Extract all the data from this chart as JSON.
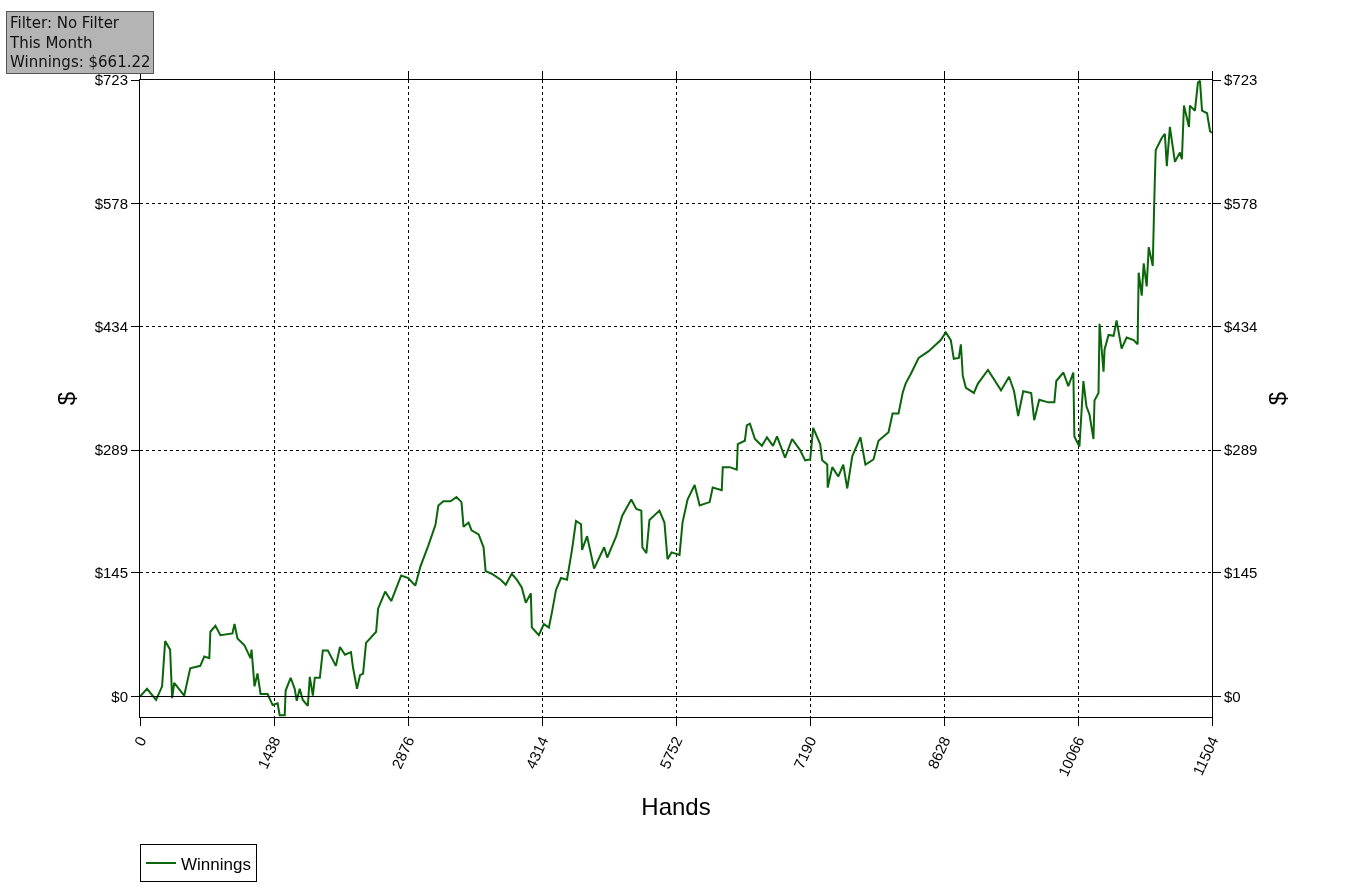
{
  "chart_data": {
    "type": "line",
    "xlabel": "Hands",
    "ylabel": "$",
    "y2label": "$",
    "annotations": [
      "Filter: No Filter",
      "This Month",
      "Winnings: $661.22"
    ],
    "xlim": [
      0,
      11504
    ],
    "xticks": [
      0,
      1438,
      2876,
      4314,
      5752,
      7190,
      8628,
      10066,
      11504
    ],
    "ylim": [
      -24,
      723
    ],
    "yticks": [
      {
        "value": 0,
        "label": "$0"
      },
      {
        "value": 145,
        "label": "$145"
      },
      {
        "value": 289,
        "label": "$289"
      },
      {
        "value": 434,
        "label": "$434"
      },
      {
        "value": 578,
        "label": "$578"
      },
      {
        "value": 723,
        "label": "$723"
      }
    ],
    "y2lim": [
      -24,
      723
    ],
    "y2ticks": [
      {
        "value": 0,
        "label": "$0"
      },
      {
        "value": 145,
        "label": "$145"
      },
      {
        "value": 289,
        "label": "$289"
      },
      {
        "value": 434,
        "label": "$434"
      },
      {
        "value": 578,
        "label": "$578"
      },
      {
        "value": 723,
        "label": "$723"
      }
    ],
    "grid": true,
    "legend": "bottom left",
    "line_style": "solid",
    "marker": "none",
    "ref_lines": [
      {
        "axis": "y",
        "value": 0,
        "color": "#000000"
      }
    ],
    "x": [
      0,
      75,
      173,
      237,
      270,
      323,
      345,
      367,
      474,
      539,
      647,
      690,
      744,
      755,
      809,
      863,
      992,
      1014,
      1046,
      1121,
      1186,
      1197,
      1229,
      1261,
      1294,
      1369,
      1423,
      1477,
      1499,
      1553,
      1563,
      1617,
      1660,
      1682,
      1714,
      1747,
      1801,
      1822,
      1855,
      1876,
      1930,
      1962,
      2016,
      2102,
      2146,
      2200,
      2264,
      2286,
      2329,
      2361,
      2394,
      2426,
      2534,
      2555,
      2631,
      2696,
      2803,
      2879,
      2954,
      3008,
      3094,
      3170,
      3202,
      3256,
      3332,
      3396,
      3450,
      3472,
      3526,
      3558,
      3634,
      3687,
      3709,
      3774,
      3871,
      3925,
      3989,
      4043,
      4097,
      4140,
      4194,
      4205,
      4280,
      4334,
      4388,
      4421,
      4464,
      4518,
      4582,
      4636,
      4679,
      4733,
      4744,
      4798,
      4873,
      4981,
      5014,
      5111,
      5175,
      5272,
      5326,
      5380,
      5391,
      5434,
      5467,
      5574,
      5628,
      5661,
      5704,
      5790,
      5822,
      5876,
      5952,
      6006,
      6113,
      6146,
      6243,
      6254,
      6329,
      6404,
      6415,
      6491,
      6512,
      6545,
      6599,
      6674,
      6728,
      6793,
      6836,
      6922,
      6998,
      7084,
      7138,
      7192,
      7224,
      7299,
      7321,
      7375,
      7380,
      7429,
      7493,
      7547,
      7590,
      7644,
      7731,
      7785,
      7871,
      7925,
      8033,
      8076,
      8140,
      8184,
      8216,
      8270,
      8356,
      8464,
      8593,
      8647,
      8701,
      8733,
      8787,
      8809,
      8830,
      8863,
      8949,
      8992,
      9100,
      9240,
      9326,
      9380,
      9424,
      9478,
      9564,
      9596,
      9650,
      9747,
      9812,
      9833,
      9909,
      9962,
      10016,
      10027,
      10081,
      10124,
      10157,
      10189,
      10232,
      10243,
      10286,
      10297,
      10340,
      10351,
      10394,
      10448,
      10480,
      10534,
      10588,
      10663,
      10706,
      10717,
      10750,
      10771,
      10803,
      10825,
      10868,
      10879,
      10890,
      10900,
      10965,
      10998,
      11019,
      11052,
      11106,
      11160,
      11181,
      11203,
      11257,
      11267,
      11321,
      11353,
      11375,
      11397,
      11451,
      11483,
      11504
    ],
    "series": [
      {
        "name": "Winnings",
        "color": "#0b650b",
        "values": [
          0,
          9,
          -4,
          12,
          65,
          55,
          -2,
          16,
          1,
          33,
          36,
          47,
          45,
          76,
          83,
          72,
          74,
          85,
          68,
          60,
          45,
          55,
          12,
          27,
          3,
          3,
          -10,
          -8,
          -22,
          -22,
          7,
          22,
          9,
          -5,
          9,
          -4,
          -11,
          23,
          1,
          22,
          22,
          54,
          54,
          36,
          58,
          49,
          52,
          34,
          9,
          25,
          27,
          63,
          76,
          103,
          123,
          112,
          142,
          139,
          130,
          152,
          177,
          201,
          224,
          229,
          229,
          234,
          228,
          199,
          204,
          195,
          190,
          175,
          147,
          144,
          137,
          131,
          144,
          137,
          128,
          110,
          121,
          81,
          72,
          85,
          81,
          99,
          125,
          139,
          137,
          172,
          206,
          202,
          172,
          188,
          150,
          175,
          163,
          188,
          212,
          231,
          220,
          218,
          175,
          168,
          207,
          218,
          204,
          161,
          169,
          166,
          204,
          231,
          248,
          224,
          228,
          245,
          242,
          269,
          269,
          266,
          296,
          300,
          318,
          320,
          302,
          294,
          304,
          294,
          305,
          280,
          302,
          289,
          277,
          278,
          315,
          296,
          277,
          272,
          245,
          269,
          258,
          272,
          244,
          282,
          304,
          272,
          278,
          300,
          310,
          332,
          332,
          356,
          367,
          378,
          397,
          405,
          418,
          427,
          418,
          396,
          397,
          413,
          376,
          362,
          356,
          367,
          383,
          359,
          375,
          358,
          329,
          358,
          356,
          324,
          348,
          345,
          345,
          370,
          380,
          364,
          380,
          305,
          293,
          370,
          340,
          331,
          302,
          347,
          356,
          437,
          381,
          407,
          424,
          423,
          441,
          408,
          421,
          418,
          413,
          497,
          470,
          508,
          481,
          527,
          505,
          555,
          604,
          641,
          655,
          660,
          622,
          668,
          627,
          638,
          630,
          693,
          668,
          693,
          687,
          720,
          722,
          687,
          684,
          663,
          661
        ]
      }
    ]
  }
}
